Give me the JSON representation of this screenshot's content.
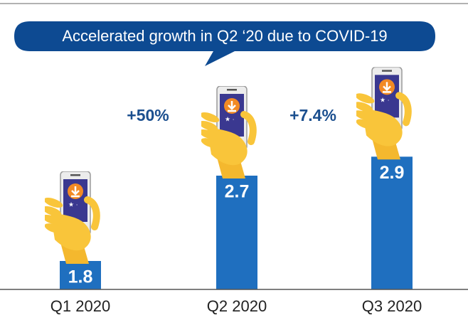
{
  "chart_data": {
    "type": "bar",
    "title": "Accelerated growth in Q2 ‘20 due to COVID-19",
    "categories": [
      "Q1 2020",
      "Q2 2020",
      "Q3 2020"
    ],
    "values": [
      1.8,
      2.7,
      2.9
    ],
    "color": "#1f6fbf",
    "ylim": [
      1.5,
      3.0
    ],
    "annotations": [
      "+50%",
      "+7.4%"
    ]
  }
}
